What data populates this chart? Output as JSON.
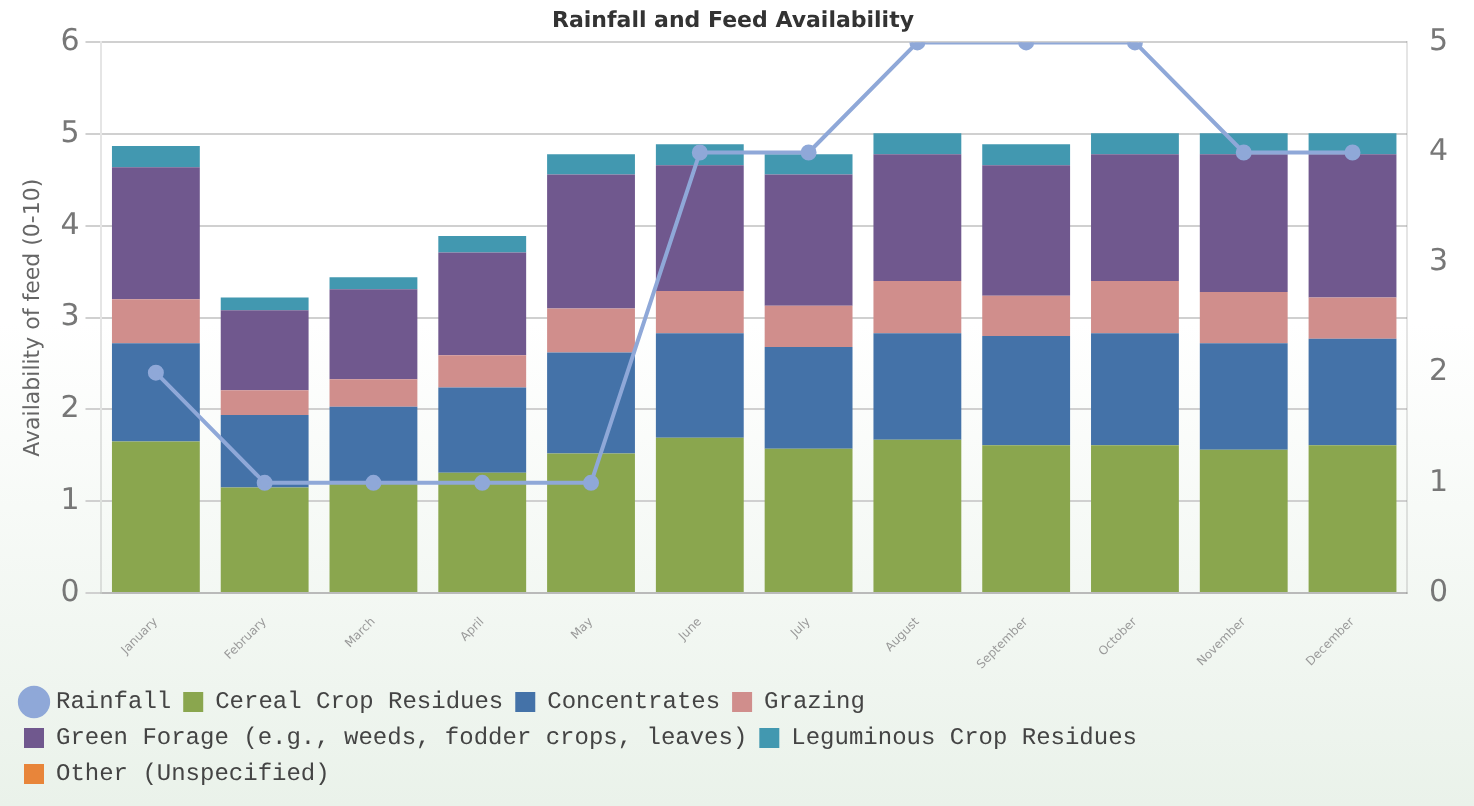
{
  "chart_data": {
    "type": "bar",
    "title": "Rainfall and Feed Availability",
    "ylabel": "Availability of feed (0-10)",
    "categories": [
      "January",
      "February",
      "March",
      "April",
      "May",
      "June",
      "July",
      "August",
      "September",
      "October",
      "November",
      "December"
    ],
    "stacked": true,
    "ylim": [
      0,
      6
    ],
    "yticks": [
      0,
      1,
      2,
      3,
      4,
      5,
      6
    ],
    "y2lim": [
      0,
      5
    ],
    "y2ticks": [
      0,
      1,
      2,
      3,
      4,
      5
    ],
    "grid": "y",
    "legend": "bottom",
    "marker": "circle",
    "series": [
      {
        "name": "Cereal Crop Residues",
        "color": "#8aa64e",
        "values": [
          1.65,
          1.15,
          1.19,
          1.31,
          1.52,
          1.69,
          1.57,
          1.67,
          1.61,
          1.61,
          1.56,
          1.61
        ]
      },
      {
        "name": "Concentrates",
        "color": "#4472a8",
        "values": [
          1.07,
          0.79,
          0.84,
          0.93,
          1.1,
          1.14,
          1.11,
          1.16,
          1.19,
          1.22,
          1.16,
          1.16
        ]
      },
      {
        "name": "Grazing",
        "color": "#d08e8c",
        "values": [
          0.48,
          0.27,
          0.3,
          0.35,
          0.48,
          0.46,
          0.45,
          0.57,
          0.44,
          0.57,
          0.56,
          0.45
        ]
      },
      {
        "name": "Green Forage (e.g., weeds, fodder crops, leaves)",
        "color": "#70588e",
        "values": [
          1.44,
          0.87,
          0.98,
          1.12,
          1.46,
          1.37,
          1.43,
          1.38,
          1.42,
          1.38,
          1.5,
          1.56
        ]
      },
      {
        "name": "Leguminous Crop Residues",
        "color": "#4298b0",
        "values": [
          0.23,
          0.14,
          0.13,
          0.18,
          0.22,
          0.23,
          0.22,
          0.23,
          0.23,
          0.23,
          0.23,
          0.23
        ]
      },
      {
        "name": "Other (Unspecified)",
        "color": "#e8853a",
        "values": [
          0,
          0,
          0,
          0,
          0,
          0,
          0,
          0,
          0,
          0,
          0,
          0
        ]
      },
      {
        "name": "Rainfall",
        "type": "line",
        "axis": "y2",
        "color": "#8fa8d8",
        "values": [
          2,
          1,
          1,
          1,
          1,
          4,
          4,
          5,
          5,
          5,
          4,
          4
        ]
      }
    ]
  }
}
